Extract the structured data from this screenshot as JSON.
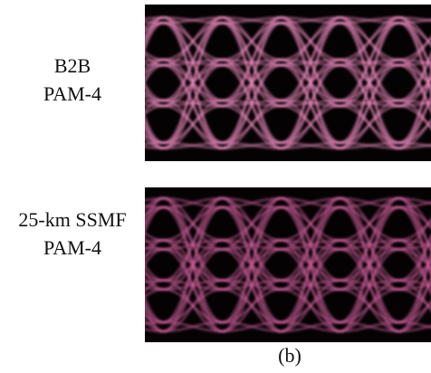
{
  "panels": [
    {
      "label_lines": [
        "B2B",
        "PAM-4"
      ]
    },
    {
      "label_lines": [
        "25-km SSMF",
        "PAM-4"
      ]
    }
  ],
  "caption": "(b)"
}
